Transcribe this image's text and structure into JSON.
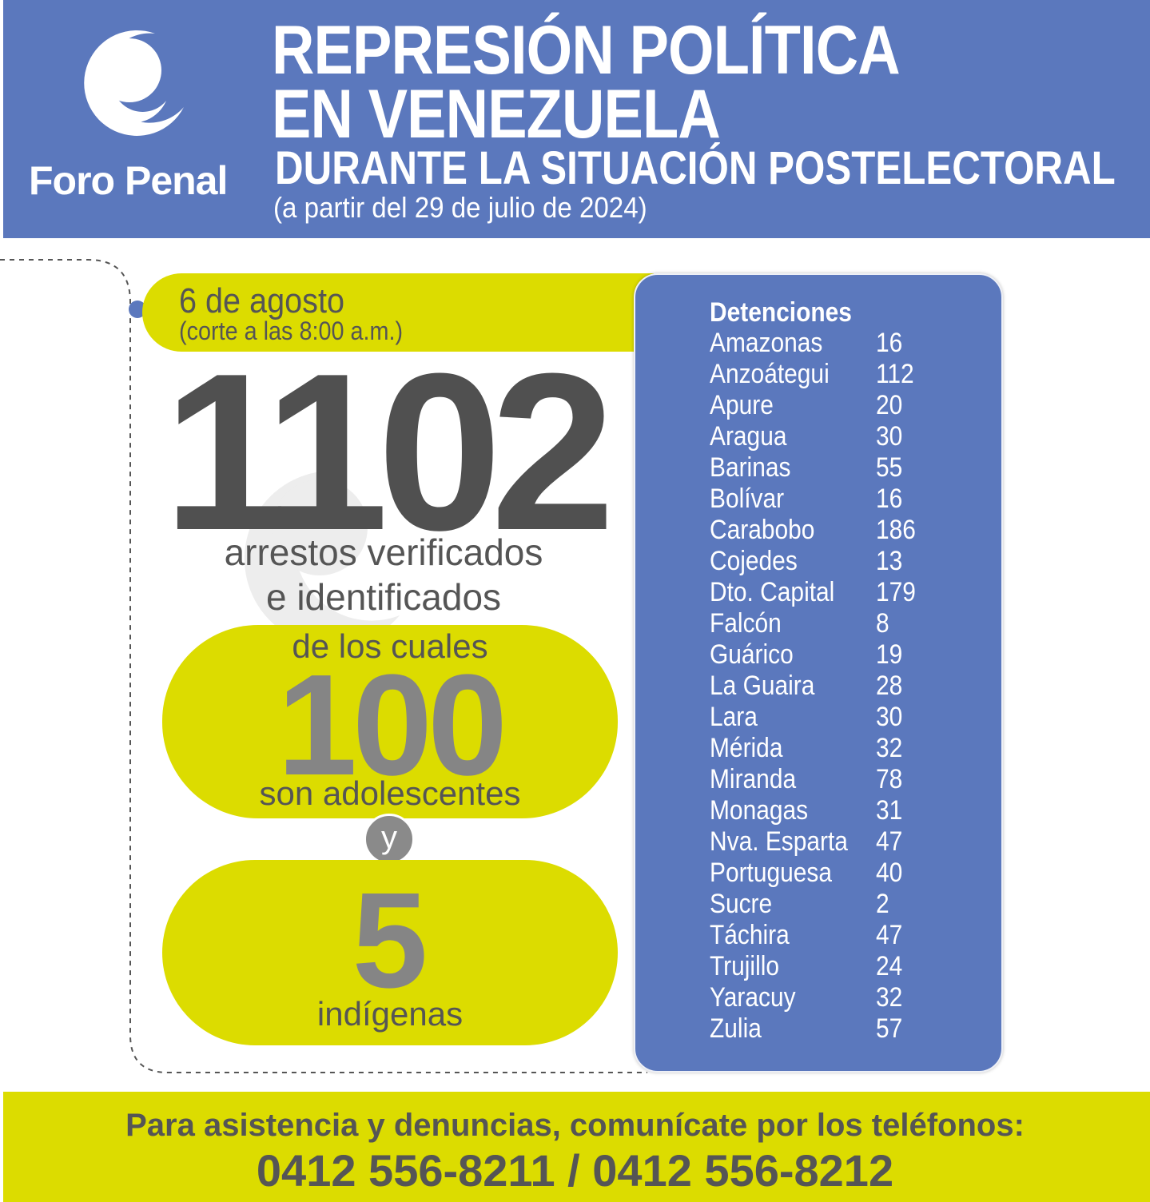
{
  "header": {
    "logo_text": "Foro Penal",
    "title_line1": "REPRESIÓN POLÍTICA",
    "title_line2": "EN VENEZUELA",
    "title_line3": "DURANTE LA SITUACIÓN POSTELECTORAL",
    "title_line4": "(a partir del 29 de julio de 2024)"
  },
  "summary": {
    "date": "6 de agosto",
    "cutoff": "(corte a las 8:00 a.m.)",
    "total_arrests": "1102",
    "arrests_line1": "arrestos verificados",
    "arrests_line2": "e identificados",
    "of_which": "de los cuales",
    "teens_count": "100",
    "teens_label": "son adolescentes",
    "and": "y",
    "indigenous_count": "5",
    "indigenous_label": "indígenas"
  },
  "detentions": {
    "title": "Detenciones",
    "rows": [
      {
        "state": "Amazonas",
        "count": "16"
      },
      {
        "state": "Anzoátegui",
        "count": "112"
      },
      {
        "state": "Apure",
        "count": "20"
      },
      {
        "state": "Aragua",
        "count": "30"
      },
      {
        "state": "Barinas",
        "count": "55"
      },
      {
        "state": "Bolívar",
        "count": "16"
      },
      {
        "state": "Carabobo",
        "count": "186"
      },
      {
        "state": "Cojedes",
        "count": "13"
      },
      {
        "state": "Dto. Capital",
        "count": "179"
      },
      {
        "state": "Falcón",
        "count": "8"
      },
      {
        "state": "Guárico",
        "count": "19"
      },
      {
        "state": "La Guaira",
        "count": "28"
      },
      {
        "state": "Lara",
        "count": "30"
      },
      {
        "state": "Mérida",
        "count": "32"
      },
      {
        "state": "Miranda",
        "count": "78"
      },
      {
        "state": "Monagas",
        "count": "31"
      },
      {
        "state": "Nva. Esparta",
        "count": "47"
      },
      {
        "state": "Portuguesa",
        "count": "40"
      },
      {
        "state": "Sucre",
        "count": "2"
      },
      {
        "state": "Táchira",
        "count": "47"
      },
      {
        "state": "Trujillo",
        "count": "24"
      },
      {
        "state": "Yaracuy",
        "count": "32"
      },
      {
        "state": "Zulia",
        "count": "57"
      }
    ]
  },
  "footer": {
    "line1": "Para asistencia y denuncias, comunícate por los teléfonos:",
    "phones": "0412 556-8211 / 0412 556-8212"
  },
  "colors": {
    "header_blue": "#5b78bd",
    "accent_yellow": "#dcdc00",
    "text_gray": "#555555"
  }
}
